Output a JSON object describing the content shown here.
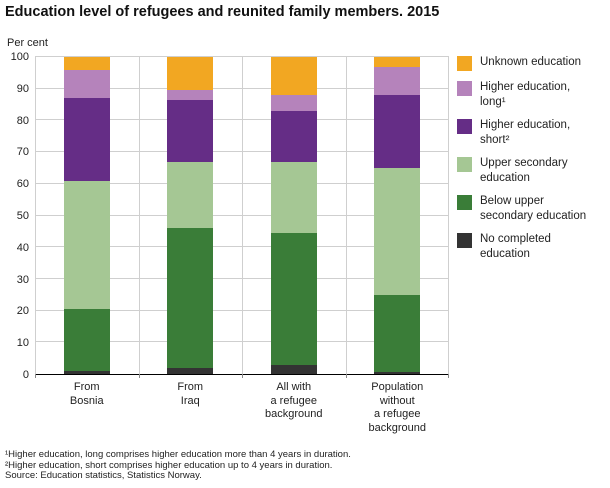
{
  "chart_data": {
    "type": "bar",
    "stacked": true,
    "title": "Education level of refugees and reunited family members. 2015",
    "ylabel": "Per cent",
    "ylim": [
      0,
      100
    ],
    "ytick_interval": 10,
    "grid": true,
    "legend_position": "right",
    "categories": [
      "From\nBosnia",
      "From\nIraq",
      "All with\na refugee\nbackground",
      "Population\nwithout\na refugee\nbackground"
    ],
    "series": [
      {
        "name": "No completed education",
        "legend_label": "No completed\neducation",
        "color": "#333333",
        "values": [
          1,
          2,
          3,
          0.5
        ]
      },
      {
        "name": "Below upper secondary education",
        "legend_label": "Below upper\nsecondary education",
        "color": "#3a7d38",
        "values": [
          19.5,
          44,
          41.5,
          24.5
        ]
      },
      {
        "name": "Upper secondary education",
        "legend_label": "Upper secondary\neducation",
        "color": "#a5c794",
        "values": [
          40.5,
          21,
          22.5,
          40
        ]
      },
      {
        "name": "Higher education, short",
        "legend_label": "Higher education,\nshort²",
        "color": "#652d86",
        "values": [
          26,
          19.5,
          16,
          23
        ]
      },
      {
        "name": "Higher education, long",
        "legend_label": "Higher education,\nlong¹",
        "color": "#b583bb",
        "values": [
          9,
          3,
          5,
          9
        ]
      },
      {
        "name": "Unknown education",
        "legend_label": "Unknown education",
        "color": "#f2a722",
        "values": [
          4,
          10.5,
          12,
          3
        ]
      }
    ]
  },
  "footnotes": [
    "¹Higher education, long comprises higher education more than 4 years in duration.",
    "²Higher education, short comprises higher education up to 4 years in duration.",
    "Source: Education statistics, Statistics Norway."
  ]
}
